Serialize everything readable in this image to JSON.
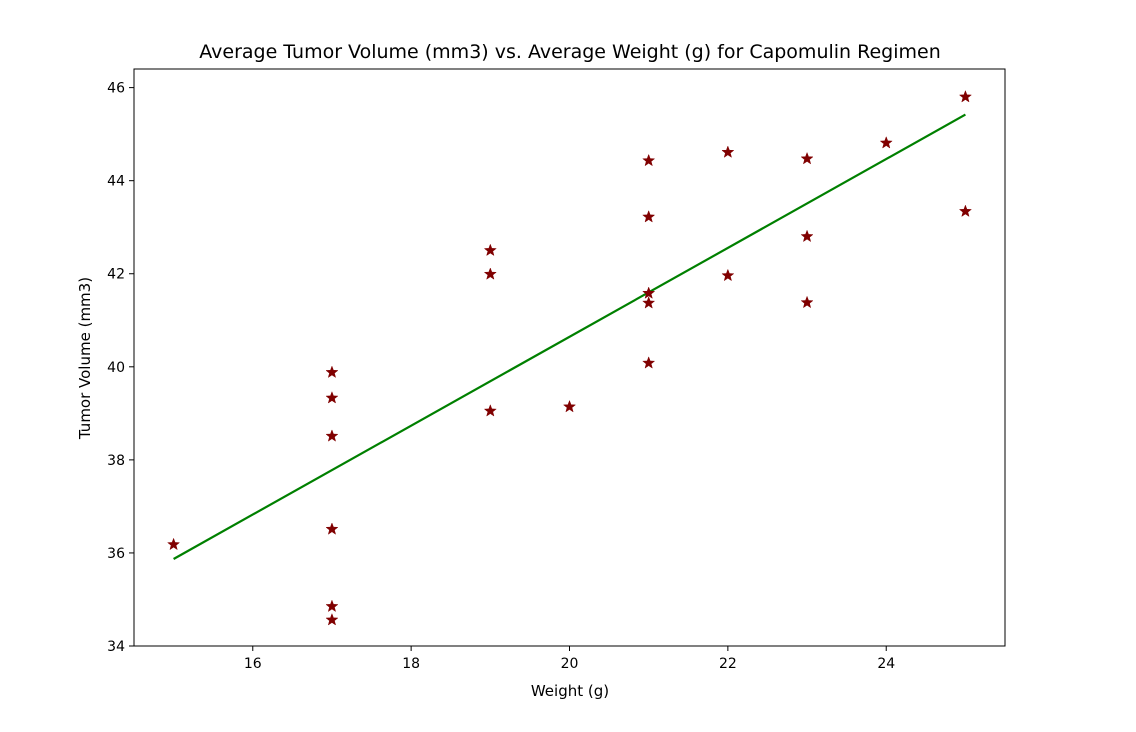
{
  "chart_data": {
    "type": "scatter",
    "title": "Average Tumor Volume (mm3) vs. Average Weight (g) for Capomulin Regimen",
    "xlabel": "Weight (g)",
    "ylabel": "Tumor Volume (mm3)",
    "xlim": [
      14.5,
      25.5
    ],
    "ylim": [
      34,
      46.4
    ],
    "xticks": [
      "16",
      "18",
      "20",
      "22",
      "24"
    ],
    "yticks": [
      "34",
      "36",
      "38",
      "40",
      "42",
      "44",
      "46"
    ],
    "grid": false,
    "series": [
      {
        "marker": "star",
        "color": "#800000",
        "points": [
          {
            "x": 15,
            "y": 36.18
          },
          {
            "x": 17,
            "y": 39.88
          },
          {
            "x": 17,
            "y": 39.33
          },
          {
            "x": 17,
            "y": 38.51
          },
          {
            "x": 17,
            "y": 36.51
          },
          {
            "x": 17,
            "y": 34.85
          },
          {
            "x": 17,
            "y": 34.56
          },
          {
            "x": 19,
            "y": 42.5
          },
          {
            "x": 19,
            "y": 41.99
          },
          {
            "x": 19,
            "y": 39.05
          },
          {
            "x": 20,
            "y": 39.14
          },
          {
            "x": 21,
            "y": 44.43
          },
          {
            "x": 21,
            "y": 43.22
          },
          {
            "x": 21,
            "y": 41.58
          },
          {
            "x": 21,
            "y": 41.37
          },
          {
            "x": 21,
            "y": 40.08
          },
          {
            "x": 22,
            "y": 44.61
          },
          {
            "x": 22,
            "y": 41.96
          },
          {
            "x": 23,
            "y": 44.47
          },
          {
            "x": 23,
            "y": 42.8
          },
          {
            "x": 23,
            "y": 41.38
          },
          {
            "x": 24,
            "y": 44.81
          },
          {
            "x": 25,
            "y": 45.8
          },
          {
            "x": 25,
            "y": 43.34
          }
        ]
      },
      {
        "type": "line",
        "color": "#008000",
        "points": [
          {
            "x": 15,
            "y": 35.87
          },
          {
            "x": 25,
            "y": 45.42
          }
        ]
      }
    ]
  }
}
